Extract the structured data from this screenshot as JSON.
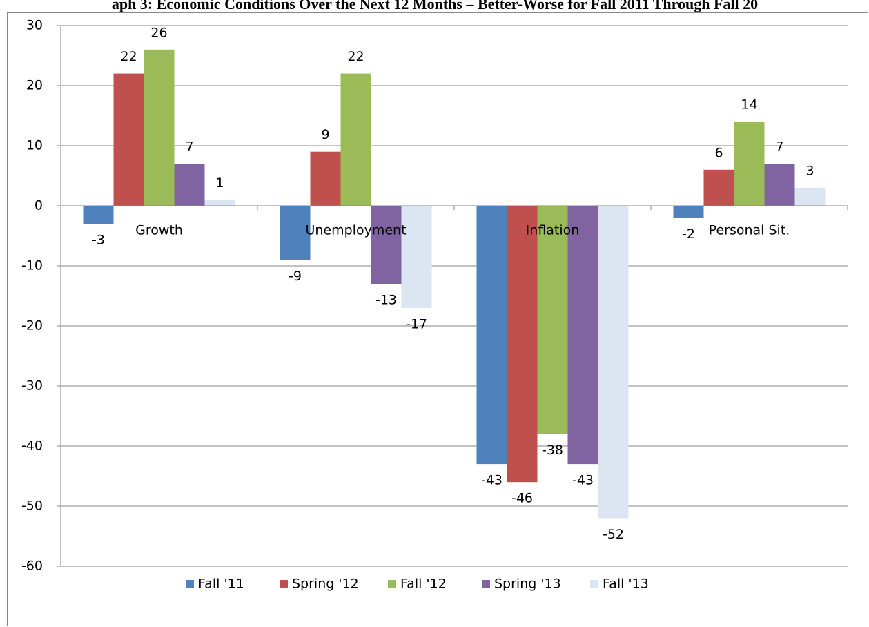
{
  "chart_data": {
    "type": "bar",
    "title": "aph 3: Economic Conditions Over the Next 12 Months – Better-Worse for Fall 2011 Through Fall 20",
    "categories": [
      "Growth",
      "Unemployment",
      "Inflation",
      "Personal Sit."
    ],
    "series": [
      {
        "name": "Fall '11",
        "color": "#4f81bd",
        "values": [
          -3,
          -9,
          -43,
          -2
        ]
      },
      {
        "name": "Spring '12",
        "color": "#c0504d",
        "values": [
          22,
          9,
          -46,
          6
        ]
      },
      {
        "name": "Fall '12",
        "color": "#9bbb59",
        "values": [
          26,
          22,
          -38,
          14
        ]
      },
      {
        "name": "Spring '13",
        "color": "#8064a2",
        "values": [
          7,
          -13,
          -43,
          7
        ]
      },
      {
        "name": "Fall '13",
        "color": "#dce6f2",
        "values": [
          1,
          -17,
          -52,
          3
        ]
      }
    ],
    "ylim": [
      -60,
      30
    ],
    "yticks": [
      -60,
      -50,
      -40,
      -30,
      -20,
      -10,
      0,
      10,
      20,
      30
    ],
    "grid": true,
    "legend": "bottom"
  }
}
